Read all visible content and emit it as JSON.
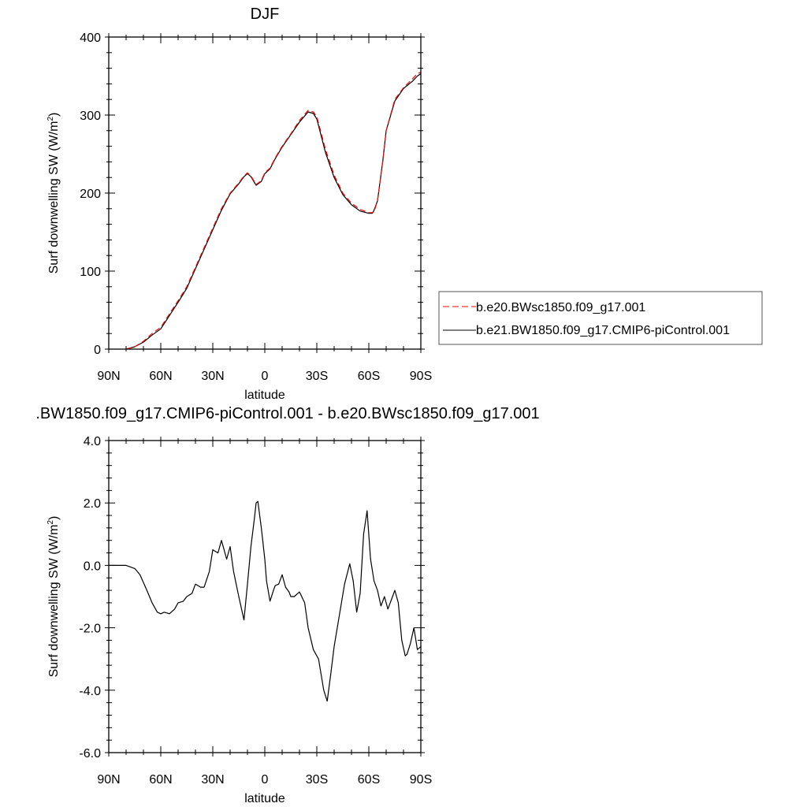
{
  "page_title": "DJF",
  "chart_data": [
    {
      "type": "line",
      "title": "DJF",
      "xlabel": "latitude",
      "ylabel": "Surf downwelling SW (W/m²)",
      "ylabel_main": "Surf downwelling SW (W/m",
      "ylabel_sup": "2",
      "ylabel_end": ")",
      "xlim": [
        90,
        -90
      ],
      "ylim": [
        0,
        400
      ],
      "x_ticks": [
        {
          "value": 90,
          "label": "90N"
        },
        {
          "value": 60,
          "label": "60N"
        },
        {
          "value": 30,
          "label": "30N"
        },
        {
          "value": 0,
          "label": "0"
        },
        {
          "value": -30,
          "label": "30S"
        },
        {
          "value": -60,
          "label": "60S"
        },
        {
          "value": -90,
          "label": "90S"
        }
      ],
      "y_ticks": [
        {
          "value": 0,
          "label": "0"
        },
        {
          "value": 100,
          "label": "100"
        },
        {
          "value": 200,
          "label": "200"
        },
        {
          "value": 300,
          "label": "300"
        },
        {
          "value": 400,
          "label": "400"
        }
      ],
      "grid": false,
      "legend_position": "right",
      "series": [
        {
          "name": "b.e20.BWsc1850.f09_g17.001",
          "color": "#ff0000",
          "style": "dashed",
          "x": [
            80,
            75,
            70,
            65,
            60,
            55,
            50,
            45,
            40,
            35,
            30,
            25,
            20,
            15,
            12,
            10,
            8,
            5,
            2,
            0,
            -3,
            -6,
            -10,
            -15,
            -20,
            -25,
            -28,
            -30,
            -35,
            -40,
            -45,
            -50,
            -55,
            -60,
            -62,
            -63,
            -65,
            -68,
            -70,
            -75,
            -80,
            -85,
            -88,
            -90
          ],
          "y": [
            0,
            3,
            10,
            20,
            28,
            45,
            62,
            80,
            105,
            130,
            155,
            180,
            200,
            213,
            222,
            226,
            222,
            211,
            216,
            226,
            232,
            245,
            260,
            276,
            293,
            306,
            304,
            298,
            256,
            223,
            200,
            187,
            179,
            175,
            175,
            176,
            190,
            240,
            280,
            320,
            335,
            346,
            353,
            355
          ]
        },
        {
          "name": "b.e21.BW1850.f09_g17.CMIP6-piControl.001",
          "color": "#000000",
          "style": "solid",
          "x": [
            80,
            75,
            70,
            65,
            60,
            55,
            50,
            45,
            40,
            35,
            30,
            25,
            20,
            15,
            12,
            10,
            8,
            5,
            2,
            0,
            -3,
            -6,
            -10,
            -15,
            -20,
            -25,
            -28,
            -30,
            -35,
            -40,
            -45,
            -50,
            -55,
            -60,
            -62,
            -63,
            -65,
            -68,
            -70,
            -75,
            -80,
            -85,
            -88,
            -90
          ],
          "y": [
            0,
            3,
            9,
            18,
            26,
            43,
            60,
            78,
            103,
            128,
            153,
            178,
            199,
            212,
            221,
            225,
            221,
            210,
            215,
            225,
            231,
            244,
            259,
            275,
            291,
            304,
            302,
            295,
            252,
            220,
            198,
            185,
            177,
            174,
            174,
            178,
            190,
            240,
            280,
            318,
            334,
            343,
            350,
            353
          ]
        }
      ]
    },
    {
      "type": "line",
      "title": ".BW1850.f09_g17.CMIP6-piControl.001 - b.e20.BWsc1850.f09_g17.001",
      "xlabel": "latitude",
      "ylabel": "Surf downwelling SW (W/m²)",
      "ylabel_main": "Surf downwelling SW (W/m",
      "ylabel_sup": "2",
      "ylabel_end": ")",
      "xlim": [
        90,
        -90
      ],
      "ylim": [
        -6,
        4
      ],
      "x_ticks": [
        {
          "value": 90,
          "label": "90N"
        },
        {
          "value": 60,
          "label": "60N"
        },
        {
          "value": 30,
          "label": "30N"
        },
        {
          "value": 0,
          "label": "0"
        },
        {
          "value": -30,
          "label": "30S"
        },
        {
          "value": -60,
          "label": "60S"
        },
        {
          "value": -90,
          "label": "90S"
        }
      ],
      "y_ticks": [
        {
          "value": -6,
          "label": "-6.0"
        },
        {
          "value": -4,
          "label": "-4.0"
        },
        {
          "value": -2,
          "label": "-2.0"
        },
        {
          "value": 0,
          "label": "0.0"
        },
        {
          "value": 2,
          "label": "2.0"
        },
        {
          "value": 4,
          "label": "4.0"
        }
      ],
      "grid": false,
      "series": [
        {
          "color": "#000000",
          "style": "solid",
          "x": [
            90,
            80,
            75,
            72,
            68,
            65,
            62,
            60,
            58,
            55,
            52,
            50,
            47,
            45,
            42,
            40,
            37,
            35,
            32,
            30,
            27,
            25,
            22,
            20,
            18,
            15,
            12,
            10,
            8,
            6,
            5,
            4,
            2,
            0,
            -1,
            -3,
            -5,
            -6,
            -8,
            -10,
            -12,
            -14,
            -15,
            -17,
            -20,
            -23,
            -25,
            -28,
            -31,
            -34,
            -36,
            -38,
            -40,
            -43,
            -46,
            -49,
            -51,
            -53,
            -55,
            -57,
            -59,
            -61,
            -63,
            -65,
            -67,
            -69,
            -71,
            -73,
            -75,
            -77,
            -79,
            -81,
            -82,
            -84,
            -86,
            -88,
            -90
          ],
          "y": [
            0,
            0,
            -0.1,
            -0.3,
            -0.8,
            -1.2,
            -1.5,
            -1.55,
            -1.5,
            -1.55,
            -1.4,
            -1.2,
            -1.15,
            -1.0,
            -0.9,
            -0.6,
            -0.7,
            -0.7,
            -0.2,
            0.5,
            0.4,
            0.8,
            0.2,
            0.6,
            -0.2,
            -1.0,
            -1.75,
            -0.6,
            0.6,
            1.5,
            2.0,
            2.05,
            1.2,
            0.2,
            -0.5,
            -1.15,
            -0.8,
            -0.65,
            -0.6,
            -0.3,
            -0.7,
            -0.85,
            -1.0,
            -1.0,
            -0.85,
            -1.2,
            -2.0,
            -2.7,
            -3.0,
            -4.0,
            -4.35,
            -3.5,
            -2.6,
            -1.6,
            -0.6,
            0.05,
            -0.5,
            -1.5,
            -0.9,
            1.0,
            1.75,
            0.2,
            -0.5,
            -0.8,
            -1.3,
            -1.0,
            -1.4,
            -1.1,
            -0.8,
            -1.2,
            -2.4,
            -2.9,
            -2.85,
            -2.5,
            -2.0,
            -2.7,
            -2.6
          ]
        }
      ]
    }
  ]
}
